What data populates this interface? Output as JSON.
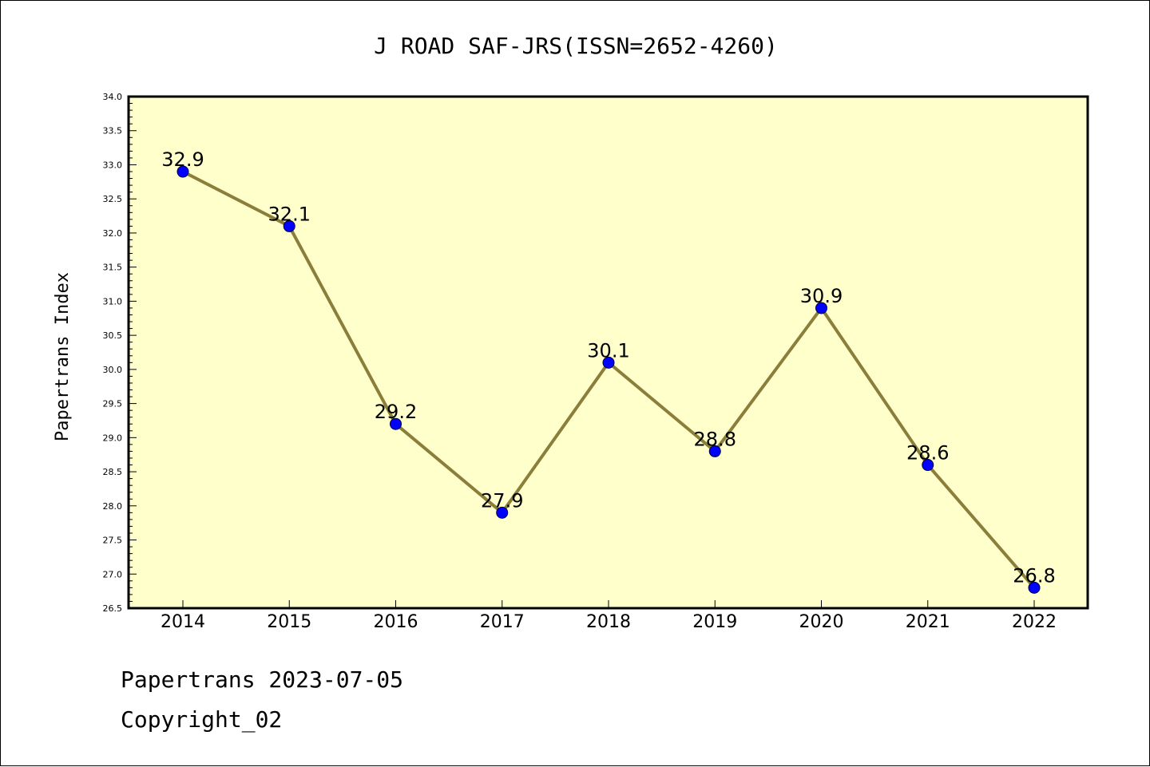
{
  "chart_data": {
    "type": "line",
    "title": "J ROAD SAF-JRS(ISSN=2652-4260)",
    "xlabel": "",
    "ylabel": "Papertrans Index",
    "categories": [
      "2014",
      "2015",
      "2016",
      "2017",
      "2018",
      "2019",
      "2020",
      "2021",
      "2022"
    ],
    "series": [
      {
        "values": [
          32.9,
          32.1,
          29.2,
          27.9,
          30.1,
          28.8,
          30.9,
          28.6,
          26.8
        ]
      }
    ],
    "data_labels": [
      "32.9",
      "32.1",
      "29.2",
      "27.9",
      "30.1",
      "28.8",
      "30.9",
      "28.6",
      "26.8"
    ],
    "ylim": [
      26.5,
      34.0
    ],
    "yticks": [
      "26.5",
      "27.0",
      "27.5",
      "28.0",
      "28.5",
      "29.0",
      "29.5",
      "30.0",
      "30.5",
      "31.0",
      "31.5",
      "32.0",
      "32.5",
      "33.0",
      "33.5",
      "34.0"
    ],
    "grid": false,
    "legend": "none",
    "colors": {
      "plot_background": "#ffffcc",
      "line": "#8b7d3a",
      "marker": "#0000ff"
    }
  },
  "footer": {
    "date_line": "Papertrans 2023-07-05",
    "copyright_line": "Copyright_02"
  }
}
